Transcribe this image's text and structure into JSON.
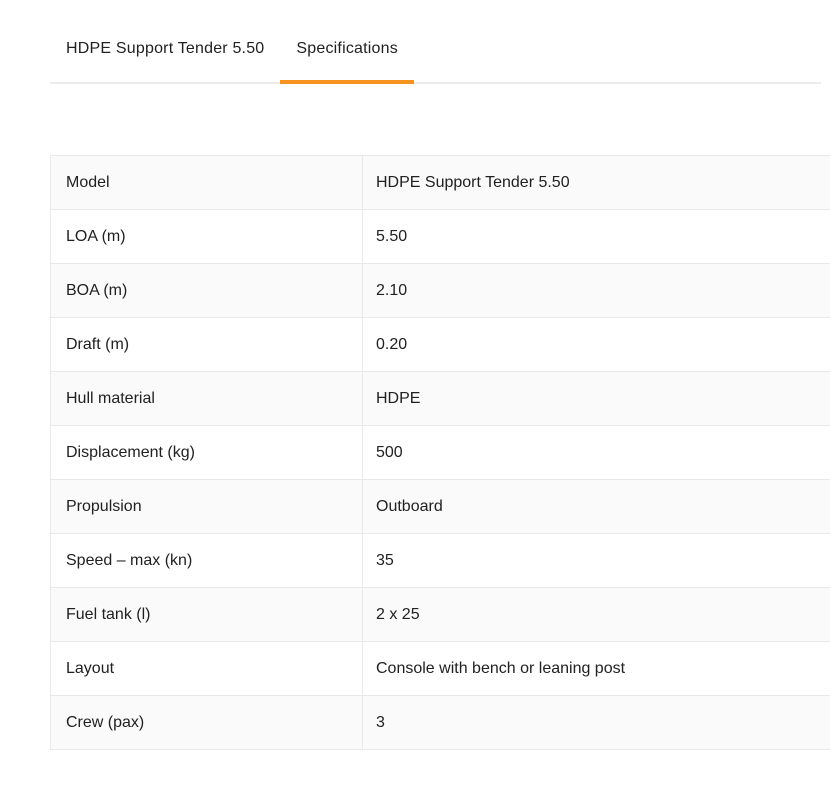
{
  "colors": {
    "accent": "#F6921E",
    "border": "#e9e9e9",
    "row_alternate": "#fafafa",
    "text": "#212121"
  },
  "tabs": [
    {
      "id": "model-overview",
      "label": "HDPE Support Tender 5.50",
      "active": false
    },
    {
      "id": "specifications",
      "label": "Specifications",
      "active": true
    }
  ],
  "spec_table": {
    "rows": [
      {
        "label": "Model",
        "value": "HDPE Support Tender 5.50"
      },
      {
        "label": "LOA (m)",
        "value": "5.50"
      },
      {
        "label": "BOA (m)",
        "value": "2.10"
      },
      {
        "label": "Draft (m)",
        "value": "0.20"
      },
      {
        "label": "Hull material",
        "value": "HDPE"
      },
      {
        "label": "Displacement (kg)",
        "value": "500"
      },
      {
        "label": "Propulsion",
        "value": "Outboard"
      },
      {
        "label": "Speed – max (kn)",
        "value": "35"
      },
      {
        "label": "Fuel tank (l)",
        "value": "2 x 25"
      },
      {
        "label": "Layout",
        "value": "Console with bench or leaning post"
      },
      {
        "label": "Crew (pax)",
        "value": "3"
      }
    ]
  }
}
